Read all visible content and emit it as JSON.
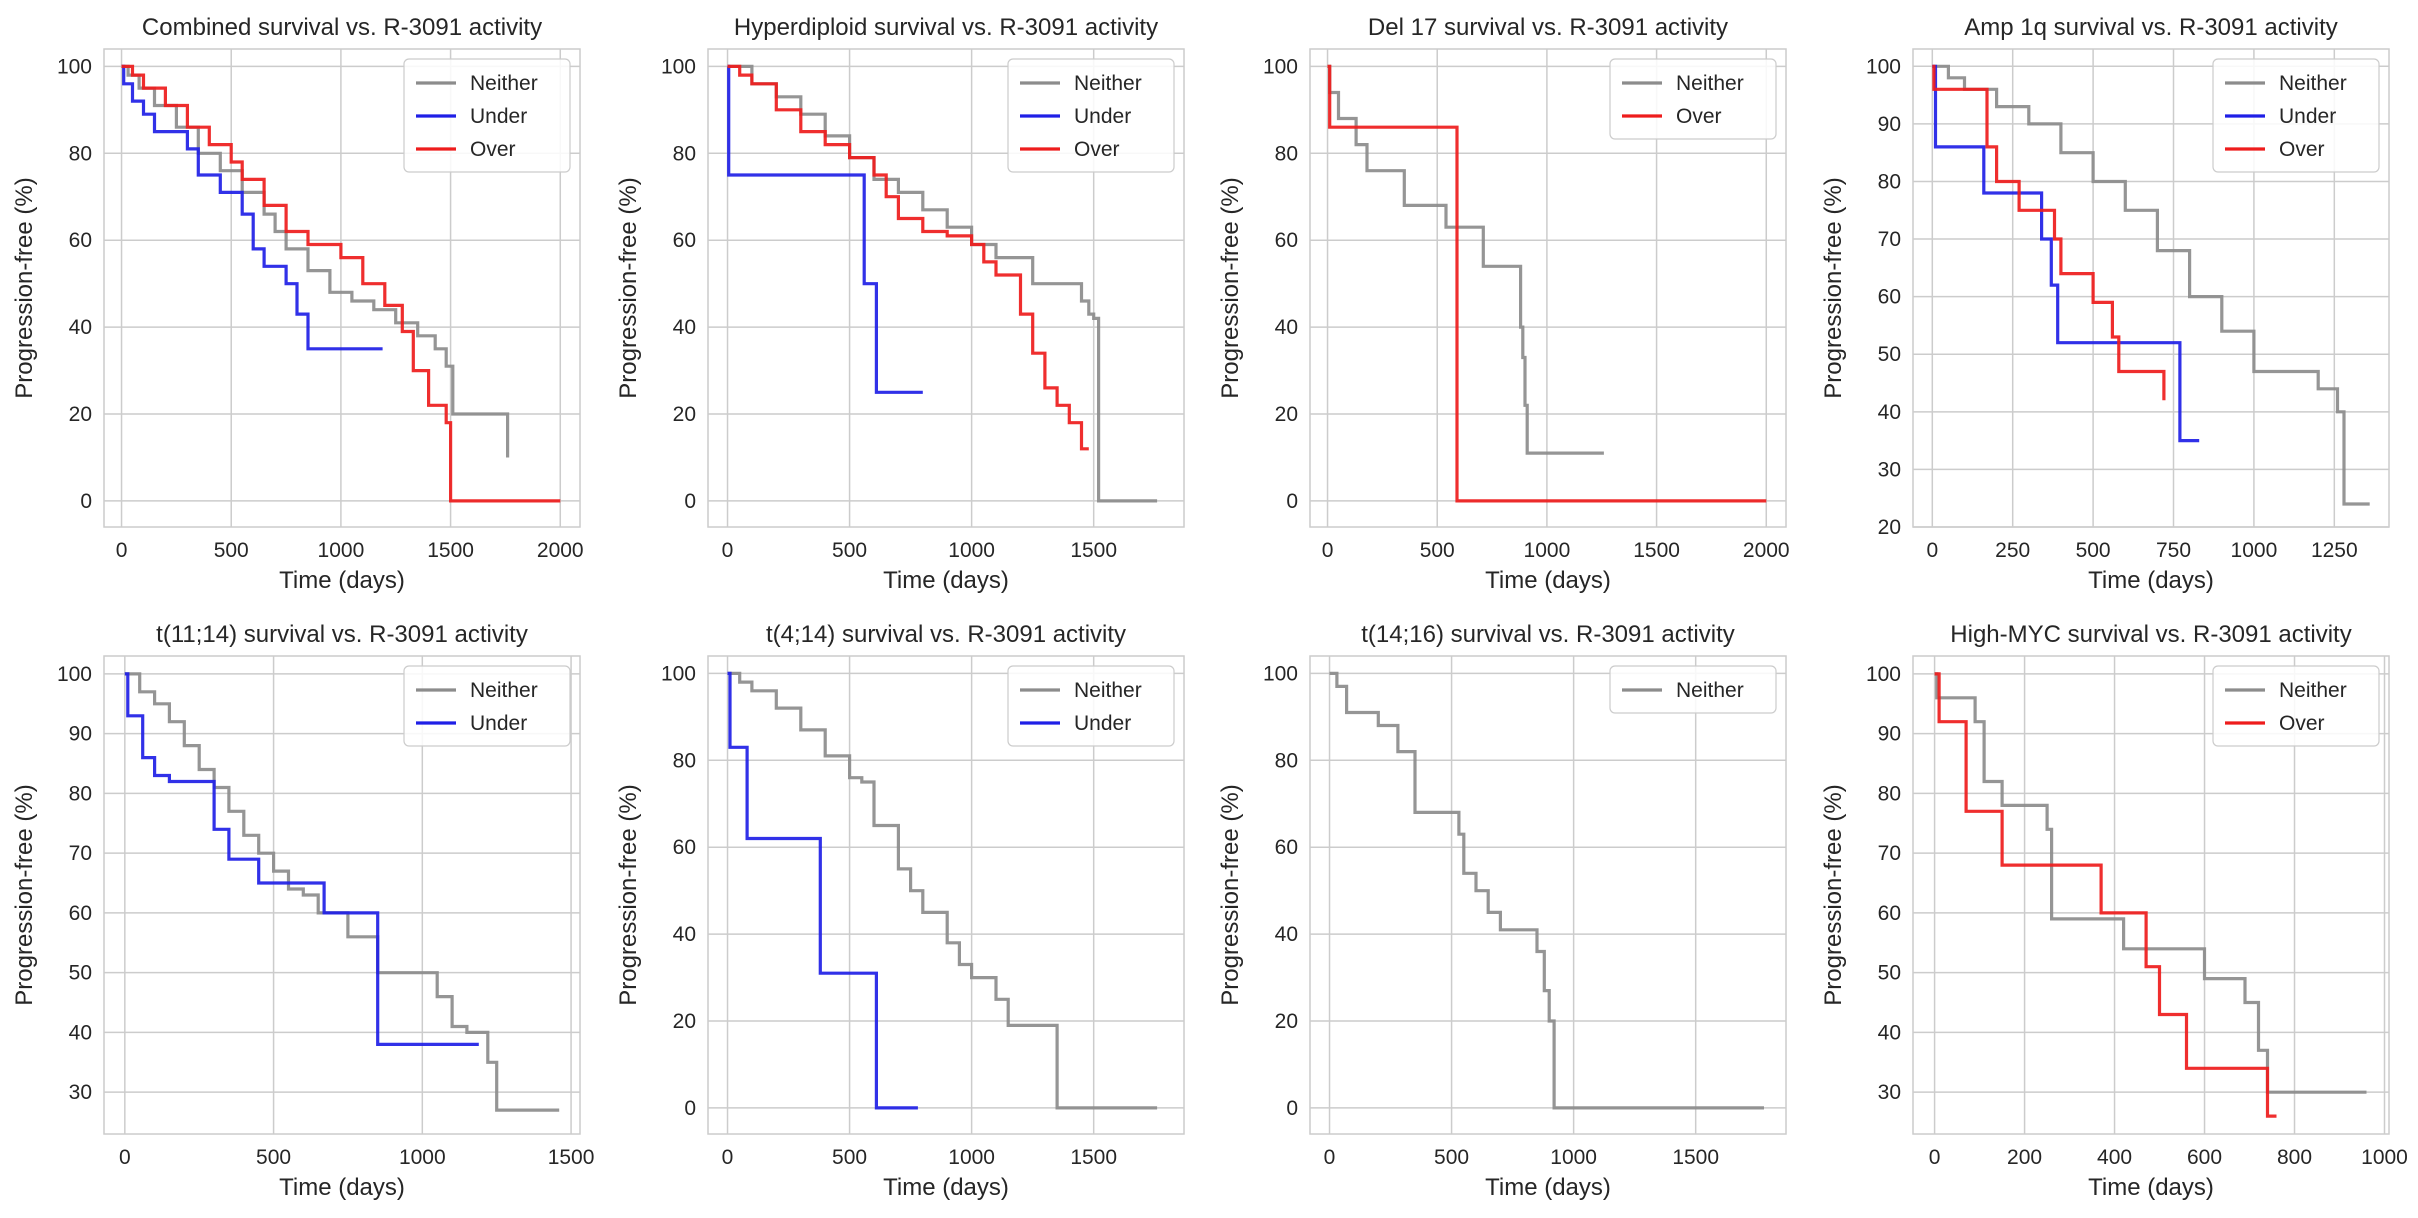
{
  "colors": {
    "Neither": "#8c8c8c",
    "Under": "#1f1fe6",
    "Over": "#ee1c1c"
  },
  "chart_data": [
    {
      "type": "line",
      "title": "Combined survival vs. R-3091 activity",
      "xlabel": "Time (days)",
      "ylabel": "Progression-free (%)",
      "xlim": [
        -80,
        2090
      ],
      "ylim": [
        -6,
        104
      ],
      "xticks": [
        0,
        500,
        1000,
        1500,
        2000
      ],
      "yticks": [
        0,
        20,
        40,
        60,
        80,
        100
      ],
      "legend": [
        "Neither",
        "Under",
        "Over"
      ],
      "series": [
        {
          "name": "Neither",
          "x": [
            0,
            30,
            80,
            150,
            250,
            350,
            450,
            550,
            650,
            700,
            750,
            850,
            950,
            1050,
            1150,
            1250,
            1350,
            1430,
            1480,
            1510,
            1750,
            1760
          ],
          "y": [
            100,
            98,
            95,
            91,
            86,
            80,
            76,
            71,
            66,
            62,
            58,
            53,
            48,
            46,
            44,
            41,
            38,
            35,
            31,
            20,
            20,
            10
          ]
        },
        {
          "name": "Under",
          "x": [
            0,
            10,
            50,
            100,
            150,
            300,
            350,
            450,
            550,
            600,
            650,
            750,
            800,
            850,
            1190
          ],
          "y": [
            100,
            96,
            92,
            89,
            85,
            81,
            75,
            71,
            66,
            58,
            54,
            50,
            43,
            35,
            35
          ]
        },
        {
          "name": "Over",
          "x": [
            0,
            50,
            100,
            200,
            300,
            400,
            500,
            550,
            650,
            750,
            850,
            1000,
            1100,
            1200,
            1280,
            1330,
            1400,
            1480,
            1500,
            2000
          ],
          "y": [
            100,
            98,
            95,
            91,
            86,
            82,
            78,
            74,
            68,
            62,
            59,
            56,
            50,
            45,
            39,
            30,
            22,
            18,
            0,
            0
          ]
        }
      ]
    },
    {
      "type": "line",
      "title": "Hyperdiploid survival vs. R-3091 activity",
      "xlabel": "Time (days)",
      "ylabel": "Progression-free (%)",
      "xlim": [
        -80,
        1870
      ],
      "ylim": [
        -6,
        104
      ],
      "xticks": [
        0,
        500,
        1000,
        1500
      ],
      "yticks": [
        0,
        20,
        40,
        60,
        80,
        100
      ],
      "legend": [
        "Neither",
        "Under",
        "Over"
      ],
      "series": [
        {
          "name": "Neither",
          "x": [
            0,
            100,
            200,
            300,
            400,
            500,
            600,
            700,
            800,
            900,
            1000,
            1100,
            1200,
            1250,
            1400,
            1450,
            1480,
            1500,
            1520,
            1760
          ],
          "y": [
            100,
            96,
            93,
            89,
            84,
            79,
            74,
            71,
            67,
            63,
            59,
            56,
            56,
            50,
            50,
            46,
            43,
            42,
            0,
            0
          ]
        },
        {
          "name": "Under",
          "x": [
            0,
            5,
            560,
            610,
            800
          ],
          "y": [
            100,
            75,
            50,
            25,
            25
          ]
        },
        {
          "name": "Over",
          "x": [
            0,
            50,
            100,
            200,
            300,
            400,
            500,
            600,
            650,
            700,
            800,
            900,
            1000,
            1050,
            1100,
            1200,
            1250,
            1300,
            1350,
            1400,
            1450,
            1480
          ],
          "y": [
            100,
            98,
            96,
            90,
            85,
            82,
            79,
            75,
            70,
            65,
            62,
            61,
            59,
            55,
            52,
            43,
            34,
            26,
            22,
            18,
            12,
            12
          ]
        }
      ]
    },
    {
      "type": "line",
      "title": "Del 17 survival vs. R-3091 activity",
      "xlabel": "Time (days)",
      "ylabel": "Progression-free (%)",
      "xlim": [
        -80,
        2090
      ],
      "ylim": [
        -6,
        104
      ],
      "xticks": [
        0,
        500,
        1000,
        1500,
        2000
      ],
      "yticks": [
        0,
        20,
        40,
        60,
        80,
        100
      ],
      "legend": [
        "Neither",
        "Over"
      ],
      "series": [
        {
          "name": "Neither",
          "x": [
            0,
            10,
            50,
            130,
            180,
            350,
            540,
            710,
            880,
            890,
            900,
            910,
            1260
          ],
          "y": [
            100,
            94,
            88,
            82,
            76,
            68,
            63,
            54,
            40,
            33,
            22,
            11,
            11
          ]
        },
        {
          "name": "Over",
          "x": [
            0,
            10,
            590,
            2000
          ],
          "y": [
            100,
            86,
            0,
            0
          ]
        }
      ]
    },
    {
      "type": "line",
      "title": "Amp 1q survival vs. R-3091 activity",
      "xlabel": "Time (days)",
      "ylabel": "Progression-free (%)",
      "xlim": [
        -60,
        1420
      ],
      "ylim": [
        20,
        103
      ],
      "xticks": [
        0,
        250,
        500,
        750,
        1000,
        1250
      ],
      "yticks": [
        20,
        30,
        40,
        50,
        60,
        70,
        80,
        90,
        100
      ],
      "legend": [
        "Neither",
        "Under",
        "Over"
      ],
      "series": [
        {
          "name": "Neither",
          "x": [
            0,
            50,
            100,
            200,
            300,
            400,
            500,
            600,
            700,
            800,
            900,
            1000,
            1200,
            1260,
            1280,
            1360
          ],
          "y": [
            100,
            98,
            96,
            93,
            90,
            85,
            80,
            75,
            68,
            60,
            54,
            47,
            44,
            40,
            24,
            24
          ]
        },
        {
          "name": "Under",
          "x": [
            0,
            10,
            160,
            340,
            370,
            390,
            750,
            770,
            830
          ],
          "y": [
            100,
            86,
            78,
            70,
            62,
            52,
            52,
            35,
            35
          ]
        },
        {
          "name": "Over",
          "x": [
            0,
            5,
            170,
            200,
            270,
            380,
            400,
            500,
            560,
            580,
            720
          ],
          "y": [
            100,
            96,
            86,
            80,
            75,
            70,
            64,
            59,
            53,
            47,
            42
          ]
        }
      ]
    },
    {
      "type": "line",
      "title": "t(11;14) survival vs. R-3091 activity",
      "xlabel": "Time (days)",
      "ylabel": "Progression-free (%)",
      "xlim": [
        -70,
        1530
      ],
      "ylim": [
        23,
        103
      ],
      "xticks": [
        0,
        500,
        1000,
        1500
      ],
      "yticks": [
        30,
        40,
        50,
        60,
        70,
        80,
        90,
        100
      ],
      "legend": [
        "Neither",
        "Under"
      ],
      "series": [
        {
          "name": "Neither",
          "x": [
            0,
            50,
            100,
            150,
            200,
            250,
            300,
            350,
            400,
            450,
            500,
            550,
            600,
            650,
            700,
            750,
            850,
            1050,
            1100,
            1150,
            1220,
            1250,
            1460
          ],
          "y": [
            100,
            97,
            95,
            92,
            88,
            84,
            81,
            77,
            73,
            70,
            67,
            64,
            63,
            60,
            60,
            56,
            50,
            46,
            41,
            40,
            35,
            27,
            27
          ]
        },
        {
          "name": "Under",
          "x": [
            0,
            10,
            60,
            100,
            150,
            300,
            350,
            450,
            550,
            670,
            850,
            1190
          ],
          "y": [
            100,
            93,
            86,
            83,
            82,
            74,
            69,
            65,
            65,
            60,
            38,
            38
          ]
        }
      ]
    },
    {
      "type": "line",
      "title": "t(4;14) survival vs. R-3091 activity",
      "xlabel": "Time (days)",
      "ylabel": "Progression-free (%)",
      "xlim": [
        -80,
        1870
      ],
      "ylim": [
        -6,
        104
      ],
      "xticks": [
        0,
        500,
        1000,
        1500
      ],
      "yticks": [
        0,
        20,
        40,
        60,
        80,
        100
      ],
      "legend": [
        "Neither",
        "Under"
      ],
      "series": [
        {
          "name": "Neither",
          "x": [
            0,
            50,
            100,
            200,
            300,
            400,
            500,
            550,
            600,
            700,
            750,
            800,
            900,
            950,
            1000,
            1100,
            1150,
            1350,
            1760
          ],
          "y": [
            100,
            98,
            96,
            92,
            87,
            81,
            76,
            75,
            65,
            55,
            50,
            45,
            38,
            33,
            30,
            25,
            19,
            0,
            0
          ]
        },
        {
          "name": "Under",
          "x": [
            0,
            10,
            80,
            380,
            610,
            780
          ],
          "y": [
            100,
            83,
            62,
            31,
            0,
            0
          ]
        }
      ]
    },
    {
      "type": "line",
      "title": "t(14;16) survival vs. R-3091 activity",
      "xlabel": "Time (days)",
      "ylabel": "Progression-free (%)",
      "xlim": [
        -80,
        1870
      ],
      "ylim": [
        -6,
        104
      ],
      "xticks": [
        0,
        500,
        1000,
        1500
      ],
      "yticks": [
        0,
        20,
        40,
        60,
        80,
        100
      ],
      "legend": [
        "Neither"
      ],
      "series": [
        {
          "name": "Neither",
          "x": [
            0,
            30,
            70,
            200,
            280,
            350,
            530,
            550,
            600,
            650,
            700,
            850,
            880,
            900,
            920,
            1780
          ],
          "y": [
            100,
            97,
            91,
            88,
            82,
            68,
            63,
            54,
            50,
            45,
            41,
            36,
            27,
            20,
            0,
            0
          ]
        }
      ]
    },
    {
      "type": "line",
      "title": "High-MYC survival vs. R-3091 activity",
      "xlabel": "Time (days)",
      "ylabel": "Progression-free (%)",
      "xlim": [
        -48,
        1010
      ],
      "ylim": [
        23,
        103
      ],
      "xticks": [
        0,
        200,
        400,
        600,
        800,
        1000
      ],
      "yticks": [
        30,
        40,
        50,
        60,
        70,
        80,
        90,
        100
      ],
      "legend": [
        "Neither",
        "Over"
      ],
      "series": [
        {
          "name": "Neither",
          "x": [
            0,
            5,
            90,
            110,
            150,
            250,
            260,
            370,
            420,
            600,
            690,
            720,
            740,
            960
          ],
          "y": [
            100,
            96,
            92,
            82,
            78,
            74,
            59,
            59,
            54,
            49,
            45,
            37,
            30,
            30
          ]
        },
        {
          "name": "Over",
          "x": [
            0,
            10,
            70,
            150,
            370,
            470,
            500,
            560,
            740,
            760
          ],
          "y": [
            100,
            92,
            77,
            68,
            60,
            51,
            43,
            34,
            26,
            26
          ]
        }
      ]
    }
  ]
}
